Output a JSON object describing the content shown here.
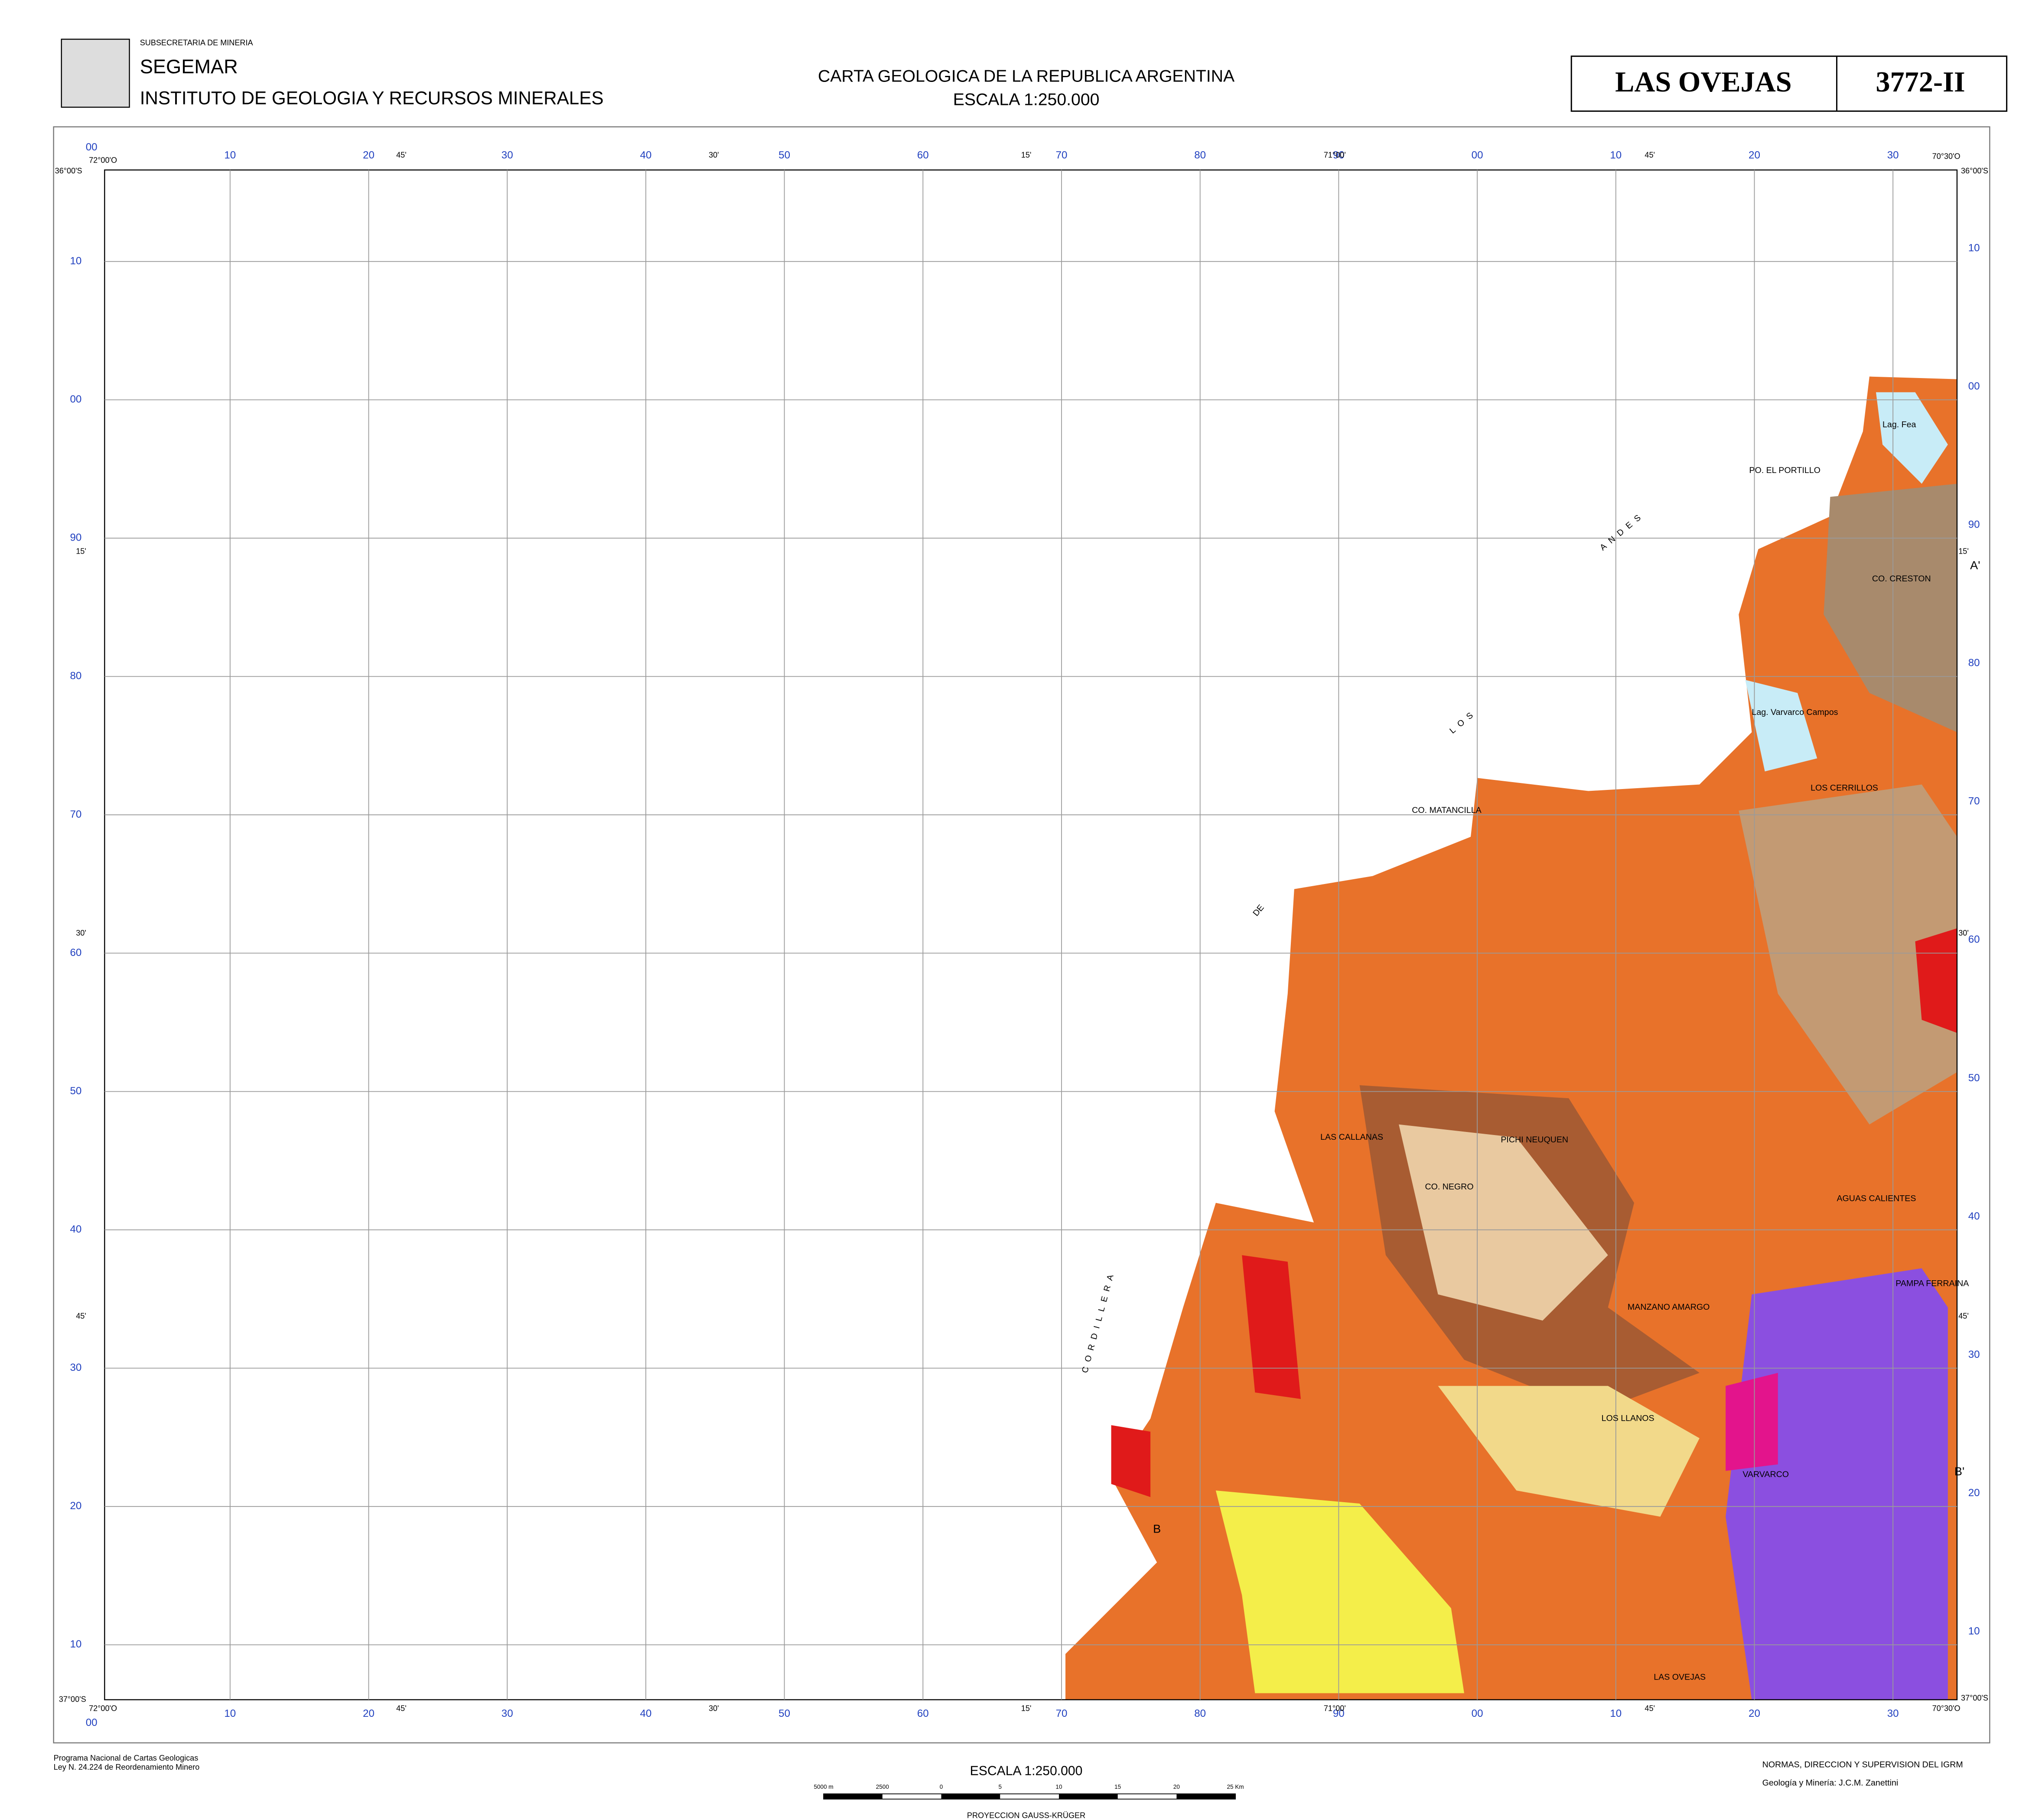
{
  "header": {
    "agency": "SUBSECRETARIA DE MINERIA",
    "org": "SEGEMAR",
    "institute": "INSTITUTO DE GEOLOGIA Y RECURSOS MINERALES",
    "title": "CARTA GEOLOGICA DE LA REPUBLICA ARGENTINA",
    "scale": "ESCALA 1:250.000",
    "sheet_name": "LAS OVEJAS",
    "sheet_code": "3772-II"
  },
  "grid": {
    "x_start": "00",
    "x_labels": [
      "10",
      "20",
      "30",
      "40",
      "50",
      "60",
      "70",
      "80",
      "90",
      "00",
      "10",
      "20",
      "30"
    ],
    "y_labels": [
      "10",
      "00",
      "90",
      "80",
      "70",
      "60",
      "50",
      "40",
      "30",
      "20",
      "10"
    ],
    "corners": {
      "nw_lon": "72°00'O",
      "nw_lat": "36°00'S",
      "ne_lon": "70°30'O",
      "ne_lat": "36°00'S",
      "sw_lon": "72°00'O",
      "sw_lat": "37°00'S",
      "se_lon": "70°30'O",
      "se_lat": "37°00'S"
    },
    "minutes_x": [
      "45'",
      "30'",
      "15'",
      "71°00'",
      "45'"
    ],
    "minutes_y": [
      "15'",
      "30'",
      "45'"
    ]
  },
  "map_labels": {
    "cordillera": "CORDILLERA",
    "de": "DE",
    "los": "LOS",
    "andes": "ANDES",
    "las_ovejas": "LAS OVEJAS",
    "varvarco": "VARVARCO",
    "pichi_neuquen": "PICHI NEUQUEN",
    "los_llanos": "LOS LLANOS",
    "manzano": "MANZANO AMARGO",
    "callanas": "LAS CALLANAS",
    "aguas": "AGUAS CALIENTES",
    "pampa": "PAMPA FERRAINA",
    "cerrillos": "LOS CERRILLOS",
    "lag_fea": "Lag. Fea",
    "varvarco_campos": "Lag. Varvarco Campos",
    "creston": "CO. CRESTON",
    "portillo": "PO. EL PORTILLO",
    "matancilla": "CO. MATANCILLA",
    "negro": "CO. NEGRO",
    "a_prime": "A'",
    "b_prime": "B'",
    "b": "B"
  },
  "footer": {
    "program": "Programa Nacional de Cartas Geologicas",
    "law": "Ley N. 24.224 de Reordenamiento Minero",
    "scale": "ESCALA 1:250.000",
    "projection": "PROYECCION GAUSS-KRÜGER",
    "norms": "NORMAS, DIRECCION Y SUPERVISION DEL IGRM",
    "authors": "Geología y Minería: J.C.M. Zanettini",
    "scale_bar": [
      "5000 m",
      "2500",
      "0",
      "5",
      "10",
      "15",
      "20",
      "25 Km"
    ]
  }
}
